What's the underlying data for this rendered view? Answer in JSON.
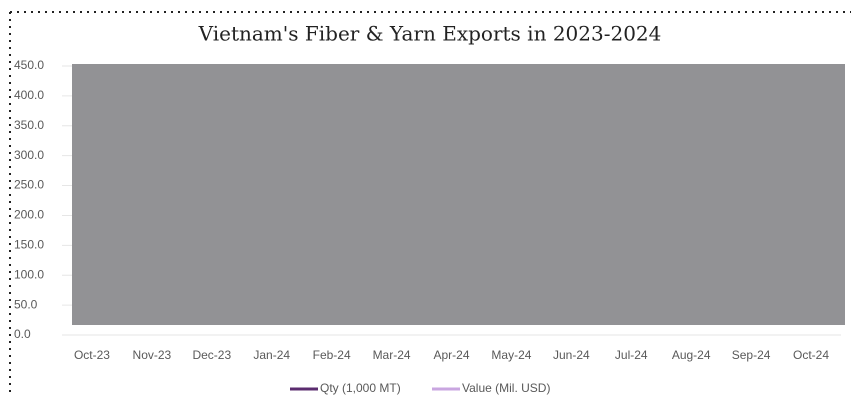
{
  "chart_data": {
    "type": "line",
    "title": "Vietnam's Fiber & Yarn Exports in 2023-2024",
    "categories": [
      "Oct-23",
      "Nov-23",
      "Dec-23",
      "Jan-24",
      "Feb-24",
      "Mar-24",
      "Apr-24",
      "May-24",
      "Jun-24",
      "Jul-24",
      "Aug-24",
      "Sep-24",
      "Oct-24"
    ],
    "series": [
      {
        "name": "Qty (1,000 MT)",
        "color": "#5b2c6f",
        "values": [
          null,
          null,
          null,
          null,
          null,
          null,
          null,
          null,
          null,
          null,
          null,
          null,
          null
        ]
      },
      {
        "name": "Value (Mil. USD)",
        "color": "#c9a6e0",
        "values": [
          null,
          null,
          null,
          null,
          null,
          null,
          null,
          null,
          null,
          null,
          null,
          null,
          null
        ]
      }
    ],
    "ylim": [
      0,
      450
    ],
    "yticks": [
      {
        "value": 0,
        "label": "0.0"
      },
      {
        "value": 50,
        "label": "50.0"
      },
      {
        "value": 100,
        "label": "100.0"
      },
      {
        "value": 150,
        "label": "150.0"
      },
      {
        "value": 200,
        "label": "200.0"
      },
      {
        "value": 250,
        "label": "250.0"
      },
      {
        "value": 300,
        "label": "300.0"
      },
      {
        "value": 350,
        "label": "350.0"
      },
      {
        "value": 400,
        "label": "400.0"
      },
      {
        "value": 450,
        "label": "450.0"
      }
    ],
    "grid": true,
    "legend": "bottom"
  }
}
